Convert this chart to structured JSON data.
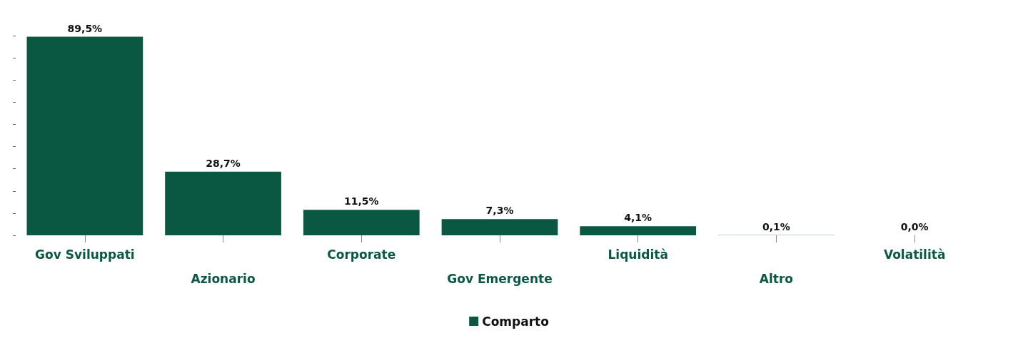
{
  "chart_data": {
    "type": "bar",
    "categories": [
      "Gov Sviluppati",
      "Azionario",
      "Corporate",
      "Gov Emergente",
      "Liquidità",
      "Altro",
      "Volatilità"
    ],
    "series": [
      {
        "name": "Comparto",
        "color": "#0b5842",
        "values": [
          89.5,
          28.7,
          11.5,
          7.3,
          4.1,
          0.1,
          0.0
        ],
        "value_labels": [
          "89,5%",
          "28,7%",
          "11,5%",
          "7,3%",
          "4,1%",
          "0,1%",
          "0,0%"
        ]
      }
    ],
    "tick_labels": "x",
    "grid": false,
    "legend": "bottom"
  }
}
